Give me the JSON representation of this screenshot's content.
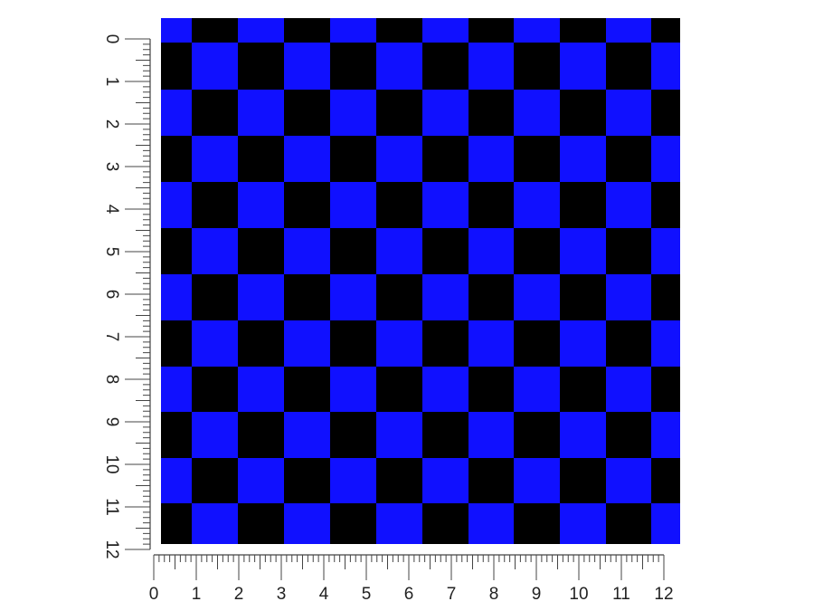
{
  "pattern": {
    "name": "checkerboard",
    "colors": {
      "light": "#1010ff",
      "dark": "#000000"
    },
    "top_left_color": "light"
  },
  "ruler_left": {
    "unit": "inch",
    "labels": [
      "0",
      "1",
      "2",
      "3",
      "4",
      "5",
      "6",
      "7",
      "8",
      "9",
      "10",
      "11",
      "12"
    ]
  },
  "ruler_bottom": {
    "unit": "inch",
    "labels": [
      "0",
      "1",
      "2",
      "3",
      "4",
      "5",
      "6",
      "7",
      "8",
      "9",
      "10",
      "11",
      "12"
    ]
  }
}
